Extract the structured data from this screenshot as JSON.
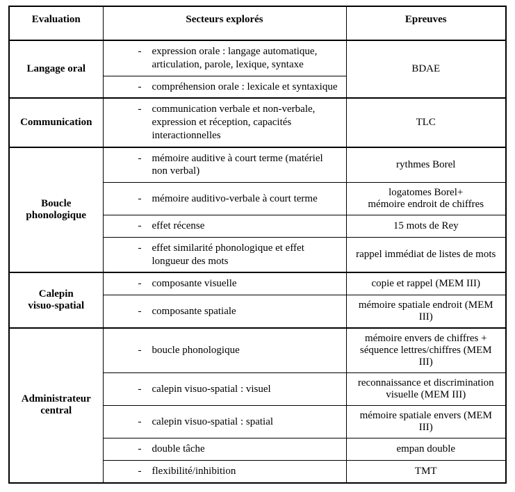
{
  "headers": {
    "evaluation": "Evaluation",
    "secteurs": "Secteurs explorés",
    "epreuves": "Epreuves"
  },
  "sections": [
    {
      "label": "Langage oral",
      "rows": [
        {
          "secteurs": [
            "expression orale : langage automatique, articulation, parole, lexique, syntaxe"
          ],
          "epreuves": "BDAE",
          "ep_rowspan": 2
        },
        {
          "secteurs": [
            "compréhension orale : lexicale et syntaxique"
          ]
        }
      ]
    },
    {
      "label": "Communication",
      "rows": [
        {
          "secteurs": [
            "communication verbale et non-verbale, expression et réception, capacités interactionnelles"
          ],
          "epreuves": "TLC"
        }
      ]
    },
    {
      "label": "Boucle phonologique",
      "label_html": "Boucle<br>phonologique",
      "rows": [
        {
          "secteurs": [
            "mémoire auditive à court terme (matériel non verbal)"
          ],
          "epreuves": "rythmes Borel"
        },
        {
          "secteurs": [
            "mémoire auditivo-verbale à court terme"
          ],
          "epreuves": "logatomes Borel+\nmémoire endroit de chiffres"
        },
        {
          "secteurs": [
            "effet récense"
          ],
          "epreuves": "15 mots de Rey"
        },
        {
          "secteurs": [
            "effet similarité phonologique et effet longueur des mots"
          ],
          "epreuves": "rappel immédiat de listes de mots"
        }
      ]
    },
    {
      "label": "Calepin visuo-spatial",
      "label_html": "Calepin<br>visuo-spatial",
      "rows": [
        {
          "secteurs": [
            "composante visuelle"
          ],
          "epreuves": "copie et rappel (MEM III)"
        },
        {
          "secteurs": [
            "composante spatiale"
          ],
          "epreuves": "mémoire spatiale endroit (MEM III)"
        }
      ]
    },
    {
      "label": "Administrateur central",
      "label_html": "Administrateur<br>central",
      "rows": [
        {
          "secteurs": [
            "boucle phonologique"
          ],
          "epreuves": "mémoire envers de chiffres + séquence lettres/chiffres (MEM III)"
        },
        {
          "secteurs": [
            "calepin visuo-spatial : visuel"
          ],
          "epreuves": "reconnaissance et discrimination visuelle (MEM III)"
        },
        {
          "secteurs": [
            "calepin visuo-spatial : spatial"
          ],
          "epreuves": "mémoire spatiale envers (MEM III)"
        },
        {
          "secteurs": [
            "double tâche"
          ],
          "epreuves": "empan double"
        },
        {
          "secteurs": [
            "flexibilité/inhibition"
          ],
          "epreuves": "TMT"
        }
      ]
    }
  ]
}
